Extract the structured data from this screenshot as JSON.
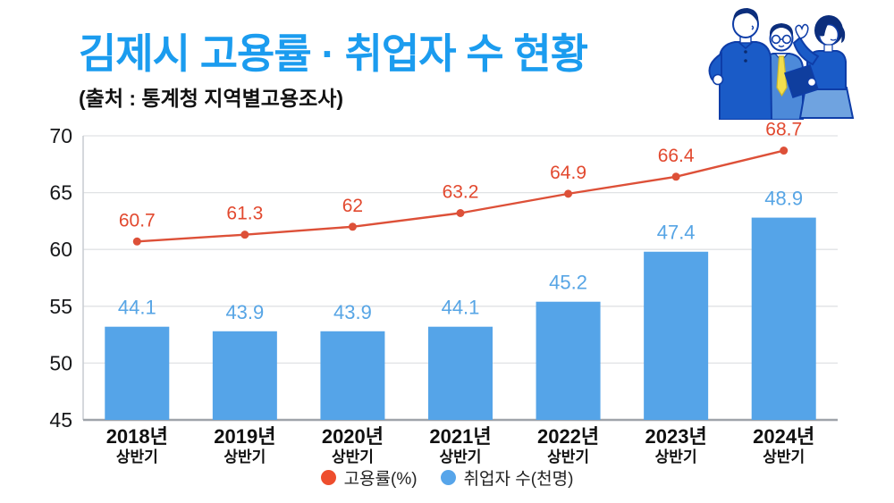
{
  "title": "김제시 고용률 · 취업자 수 현황",
  "subtitle": "(출처 : 통계청 지역별고용조사)",
  "colors": {
    "title": "#1B9CEF",
    "grid": "#E0E2E5",
    "left_axis_line": "#C7CBD1",
    "bottom_axis_line": "#9FA4AA",
    "tick_text": "#17181A",
    "x_label_text": "#111111",
    "legend_text": "#222222",
    "background": "#FFFFFF"
  },
  "legend": {
    "position": "bottom",
    "items": [
      {
        "label": "고용률(%)",
        "color": "#EE4E2E"
      },
      {
        "label": "취업자 수(천명)",
        "color": "#57A5EA"
      }
    ]
  },
  "chart_data": {
    "type": "bar+line combo",
    "title": "김제시 고용률 · 취업자 수 현황",
    "source": "(출처 : 통계청 지역별고용조사)",
    "categories": [
      "2018년",
      "2019년",
      "2020년",
      "2021년",
      "2022년",
      "2023년",
      "2024년"
    ],
    "category_subline": "상반기",
    "series": [
      {
        "name": "고용률(%)",
        "type": "line",
        "values": [
          60.7,
          61.3,
          62,
          63.2,
          64.9,
          66.4,
          68.7
        ],
        "color": "#DD5038",
        "label_color": "#E2492F",
        "axis": "left"
      },
      {
        "name": "취업자 수(천명)",
        "type": "bar",
        "values": [
          44.1,
          43.9,
          43.9,
          44.1,
          45.2,
          47.4,
          48.9
        ],
        "color": "#55A4E8",
        "label_color": "#57A5E5",
        "axis": "hidden-secondary",
        "axis_range": [
          40,
          52.5
        ]
      }
    ],
    "left_axis": {
      "min": 45,
      "max": 70,
      "ticks": [
        45,
        50,
        55,
        60,
        65,
        70
      ]
    },
    "grid": true,
    "legend_position": "bottom"
  },
  "illustration": {
    "description": "three office workers in blue tones",
    "palette": {
      "outline": "#0E3DA8",
      "main_blue": "#1A5BC7",
      "mid_blue": "#4D8AD9",
      "light_blue": "#6FA3E0",
      "hair": "#0C2E7C",
      "tie_yellow": "#F2DE4E",
      "skin": "#FFFFFF"
    }
  }
}
